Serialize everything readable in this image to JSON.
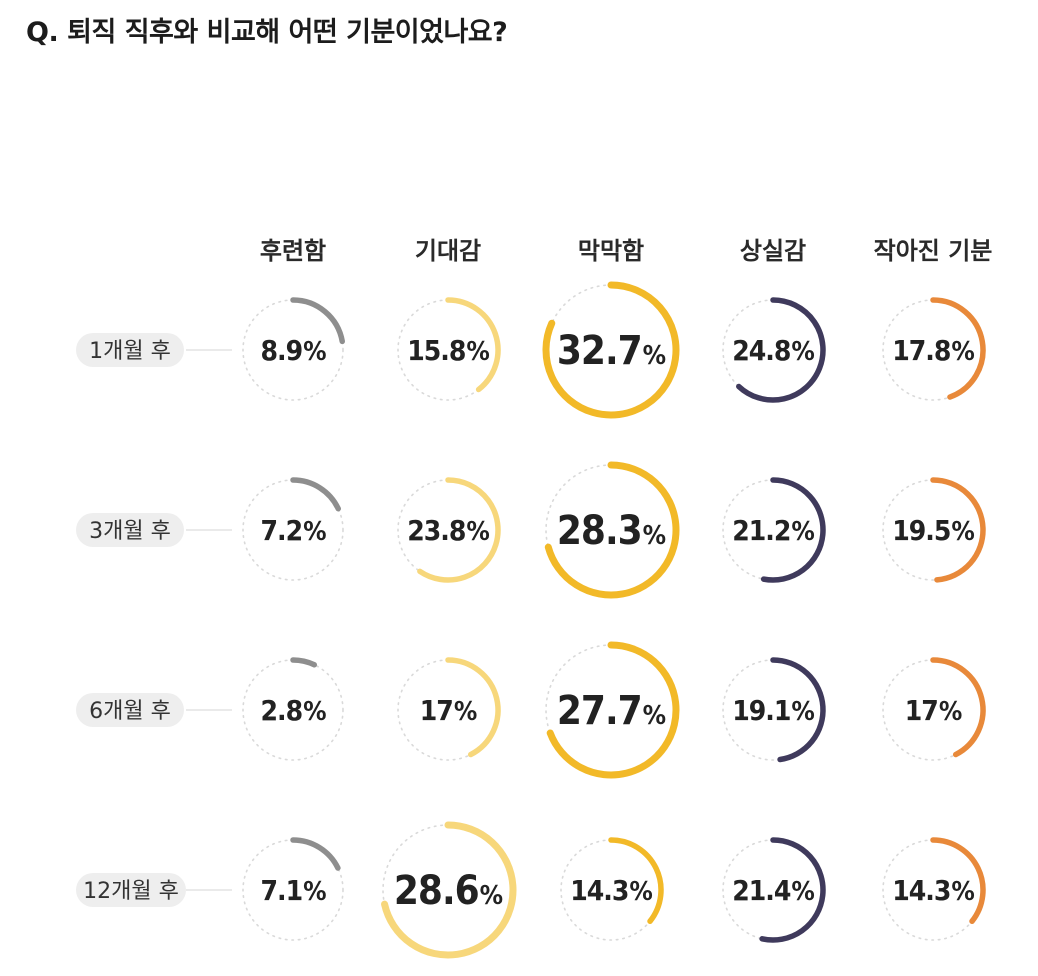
{
  "title": "Q. 퇴직 직후와 비교해 어떤 기분이었나요?",
  "chart_data": {
    "type": "radial-bubble",
    "categories": [
      "후련함",
      "기대감",
      "막막함",
      "상실감",
      "작아진 기분"
    ],
    "rows": [
      "1개월 후",
      "3개월 후",
      "6개월 후",
      "12개월 후"
    ],
    "values": [
      [
        8.9,
        15.8,
        32.7,
        24.8,
        17.8
      ],
      [
        7.2,
        23.8,
        28.3,
        21.2,
        19.5
      ],
      [
        2.8,
        17,
        27.7,
        19.1,
        17
      ],
      [
        7.1,
        28.6,
        14.3,
        21.4,
        14.3
      ]
    ],
    "labels": [
      [
        "8.9%",
        "15.8%",
        "32.7%",
        "24.8%",
        "17.8%"
      ],
      [
        "7.2%",
        "23.8%",
        "28.3%",
        "21.2%",
        "19.5%"
      ],
      [
        "2.8%",
        "17%",
        "27.7%",
        "19.1%",
        "17%"
      ],
      [
        "7.1%",
        "28.6%",
        "14.3%",
        "21.4%",
        "14.3%"
      ]
    ],
    "highlight": [
      [
        0,
        2
      ],
      [
        1,
        2
      ],
      [
        2,
        2
      ],
      [
        3,
        1
      ]
    ],
    "colors": [
      "#8e8e8e",
      "#f7d77b",
      "#f2b928",
      "#3f3a5c",
      "#e8893a"
    ],
    "track_color": "#d9d9d9"
  }
}
